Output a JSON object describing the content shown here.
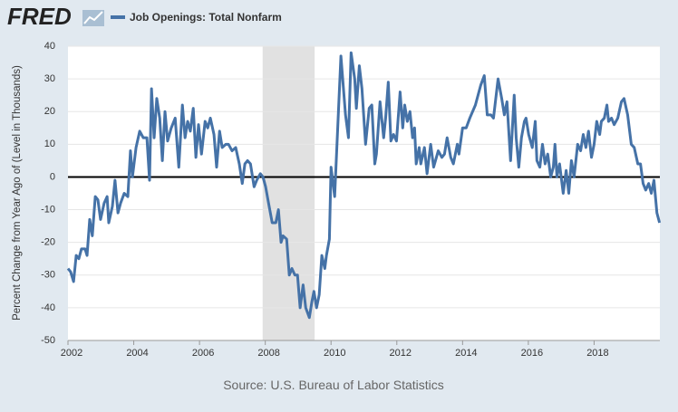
{
  "header": {
    "logo": "FRED"
  },
  "chart_data": {
    "type": "line",
    "ylabel": "Percent Change from Year Ago of (Level in Thousands)",
    "source": "Source: U.S. Bureau of Labor Statistics",
    "xlim": [
      2002,
      2020
    ],
    "ylim": [
      -50,
      40
    ],
    "xticks": [
      2002,
      2004,
      2006,
      2008,
      2010,
      2012,
      2014,
      2016,
      2018
    ],
    "yticks": [
      -50,
      -40,
      -30,
      -20,
      -10,
      0,
      10,
      20,
      30,
      40
    ],
    "grid": true,
    "shaded_ranges": [
      [
        2007.92,
        2009.5
      ]
    ],
    "x": [
      2002.0,
      2002.08,
      2002.17,
      2002.25,
      2002.33,
      2002.41,
      2002.52,
      2002.58,
      2002.66,
      2002.74,
      2002.83,
      2002.91,
      2002.99,
      2003.1,
      2003.19,
      2003.24,
      2003.35,
      2003.43,
      2003.52,
      2003.6,
      2003.71,
      2003.82,
      2003.9,
      2003.96,
      2004.07,
      2004.18,
      2004.29,
      2004.4,
      2004.48,
      2004.54,
      2004.62,
      2004.7,
      2004.79,
      2004.87,
      2004.95,
      2005.03,
      2005.14,
      2005.26,
      2005.37,
      2005.48,
      2005.56,
      2005.64,
      2005.72,
      2005.81,
      2005.89,
      2005.97,
      2006.06,
      2006.17,
      2006.25,
      2006.33,
      2006.44,
      2006.52,
      2006.61,
      2006.69,
      2006.8,
      2006.88,
      2006.99,
      2007.1,
      2007.21,
      2007.3,
      2007.38,
      2007.46,
      2007.55,
      2007.66,
      2007.74,
      2007.85,
      2007.93,
      2008.01,
      2008.1,
      2008.21,
      2008.32,
      2008.4,
      2008.48,
      2008.54,
      2008.65,
      2008.73,
      2008.81,
      2008.9,
      2008.98,
      2009.06,
      2009.15,
      2009.23,
      2009.34,
      2009.42,
      2009.48,
      2009.56,
      2009.64,
      2009.72,
      2009.81,
      2009.86,
      2009.95,
      2010.0,
      2010.11,
      2010.3,
      2010.44,
      2010.53,
      2010.61,
      2010.72,
      2010.77,
      2010.86,
      2010.94,
      2011.05,
      2011.16,
      2011.24,
      2011.33,
      2011.38,
      2011.49,
      2011.6,
      2011.66,
      2011.74,
      2011.82,
      2011.9,
      2011.99,
      2012.1,
      2012.18,
      2012.24,
      2012.32,
      2012.4,
      2012.48,
      2012.54,
      2012.59,
      2012.68,
      2012.73,
      2012.84,
      2012.92,
      2013.03,
      2013.12,
      2013.26,
      2013.37,
      2013.45,
      2013.53,
      2013.64,
      2013.72,
      2013.84,
      2013.89,
      2014.0,
      2014.11,
      2014.22,
      2014.39,
      2014.55,
      2014.66,
      2014.75,
      2014.86,
      2014.94,
      2015.08,
      2015.19,
      2015.27,
      2015.35,
      2015.46,
      2015.57,
      2015.63,
      2015.71,
      2015.79,
      2015.88,
      2015.93,
      2016.01,
      2016.12,
      2016.21,
      2016.26,
      2016.35,
      2016.43,
      2016.51,
      2016.59,
      2016.68,
      2016.76,
      2016.81,
      2016.87,
      2016.95,
      2017.06,
      2017.15,
      2017.23,
      2017.31,
      2017.39,
      2017.5,
      2017.59,
      2017.67,
      2017.75,
      2017.83,
      2017.92,
      2018.0,
      2018.08,
      2018.17,
      2018.22,
      2018.31,
      2018.39,
      2018.44,
      2018.53,
      2018.61,
      2018.72,
      2018.83,
      2018.91,
      2019.02,
      2019.13,
      2019.22,
      2019.33,
      2019.41,
      2019.49,
      2019.57,
      2019.66,
      2019.74,
      2019.82,
      2019.91,
      2019.99
    ],
    "series": [
      {
        "name": "Job Openings: Total Nonfarm",
        "color": "#4572a7",
        "values": [
          -28,
          -29,
          -32,
          -24,
          -25,
          -22,
          -22,
          -24,
          -13,
          -18,
          -6,
          -7,
          -13,
          -8,
          -6,
          -14,
          -9,
          -1,
          -11,
          -8,
          -5,
          -6,
          8,
          0,
          9,
          14,
          12,
          12,
          -1,
          27,
          12,
          24,
          18,
          5,
          20,
          11,
          15,
          18,
          3,
          22,
          12,
          17,
          14,
          21,
          6,
          16,
          7,
          17,
          15,
          18,
          13,
          3,
          14,
          9,
          10,
          10,
          8,
          9,
          4,
          -2,
          4,
          5,
          4,
          -3,
          -1,
          1,
          0,
          -3,
          -8,
          -14,
          -14,
          -10,
          -20,
          -18,
          -19,
          -30,
          -28,
          -30,
          -30,
          -40,
          -33,
          -40,
          -43,
          -38,
          -35,
          -40,
          -36,
          -24,
          -28,
          -24,
          -19,
          3,
          -6,
          37,
          19,
          12,
          38,
          30,
          21,
          34,
          27,
          10,
          21,
          22,
          4,
          7,
          23,
          12,
          18,
          29,
          11,
          13,
          11,
          26,
          15,
          22,
          17,
          20,
          12,
          15,
          4,
          9,
          4,
          9,
          1,
          10,
          3,
          8,
          6,
          7,
          12,
          6,
          4,
          10,
          7,
          15,
          15,
          18,
          22,
          28,
          31,
          19,
          19,
          18,
          30,
          24,
          19,
          23,
          5,
          25,
          12,
          3,
          12,
          17,
          18,
          13,
          9,
          17,
          5,
          3,
          10,
          4,
          7,
          0,
          3,
          10,
          0,
          4,
          -5,
          2,
          -5,
          5,
          0,
          10,
          8,
          13,
          9,
          14,
          6,
          10,
          17,
          13,
          17,
          18,
          22,
          17,
          18,
          16,
          18,
          23,
          24,
          19,
          10,
          9,
          4,
          4,
          -2,
          -4,
          -2,
          -5,
          -1,
          -11,
          -14
        ]
      }
    ]
  }
}
